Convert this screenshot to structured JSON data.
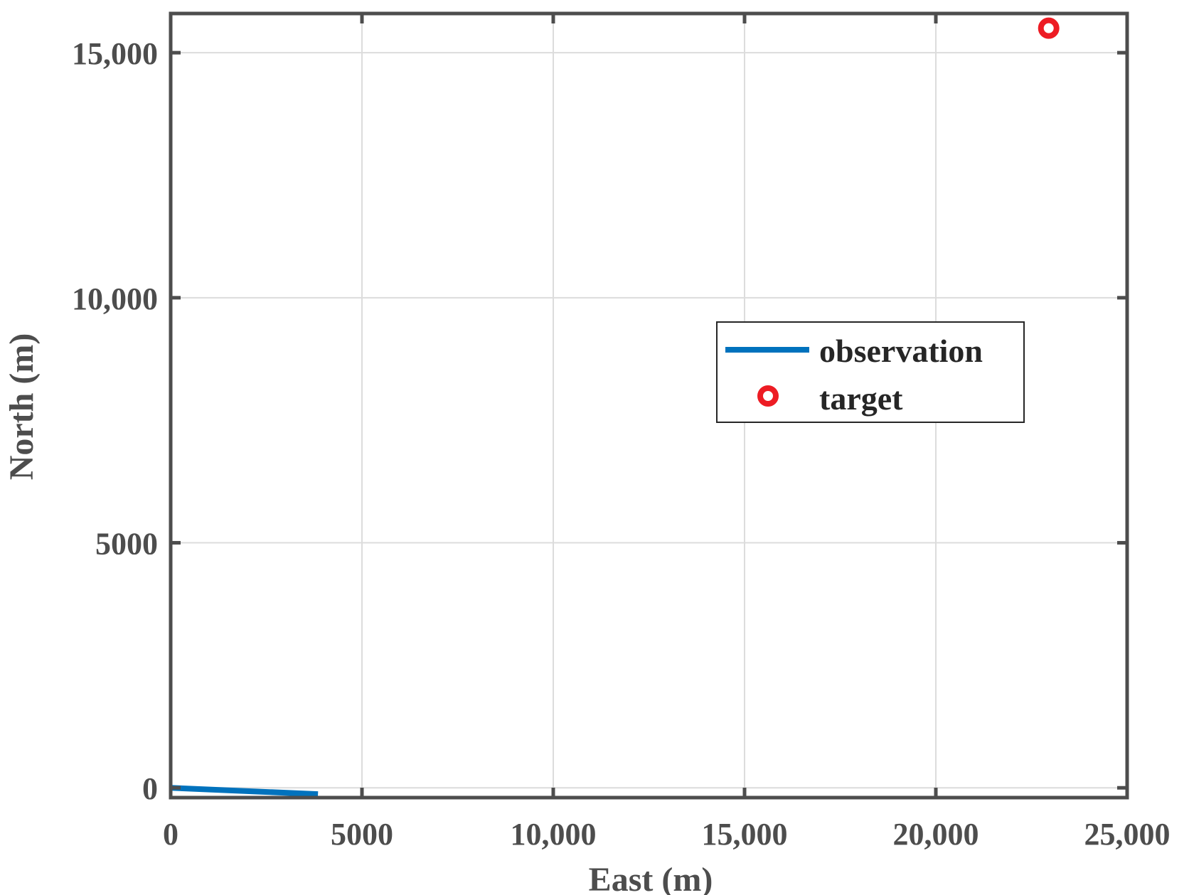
{
  "chart_data": {
    "type": "line",
    "title": "",
    "xlabel": "East (m)",
    "ylabel": "North (m)",
    "xlim": [
      0,
      25000
    ],
    "ylim": [
      -200,
      15800
    ],
    "x_ticks": [
      0,
      5000,
      10000,
      15000,
      20000,
      25000
    ],
    "x_tick_labels": [
      "0",
      "5000",
      "10,000",
      "15,000",
      "20,000",
      "25,000"
    ],
    "y_ticks": [
      0,
      5000,
      10000,
      15000
    ],
    "y_tick_labels": [
      "0",
      "5000",
      "10,000",
      "15,000"
    ],
    "grid": true,
    "legend_position": "right",
    "series": [
      {
        "name": "observation",
        "type": "line",
        "color": "#0072BD",
        "points": [
          [
            0,
            0
          ],
          [
            3850,
            -130
          ]
        ]
      },
      {
        "name": "target",
        "type": "scatter",
        "marker": "circle",
        "color": "#ED1C24",
        "points": [
          [
            22950,
            15500
          ]
        ]
      }
    ]
  }
}
